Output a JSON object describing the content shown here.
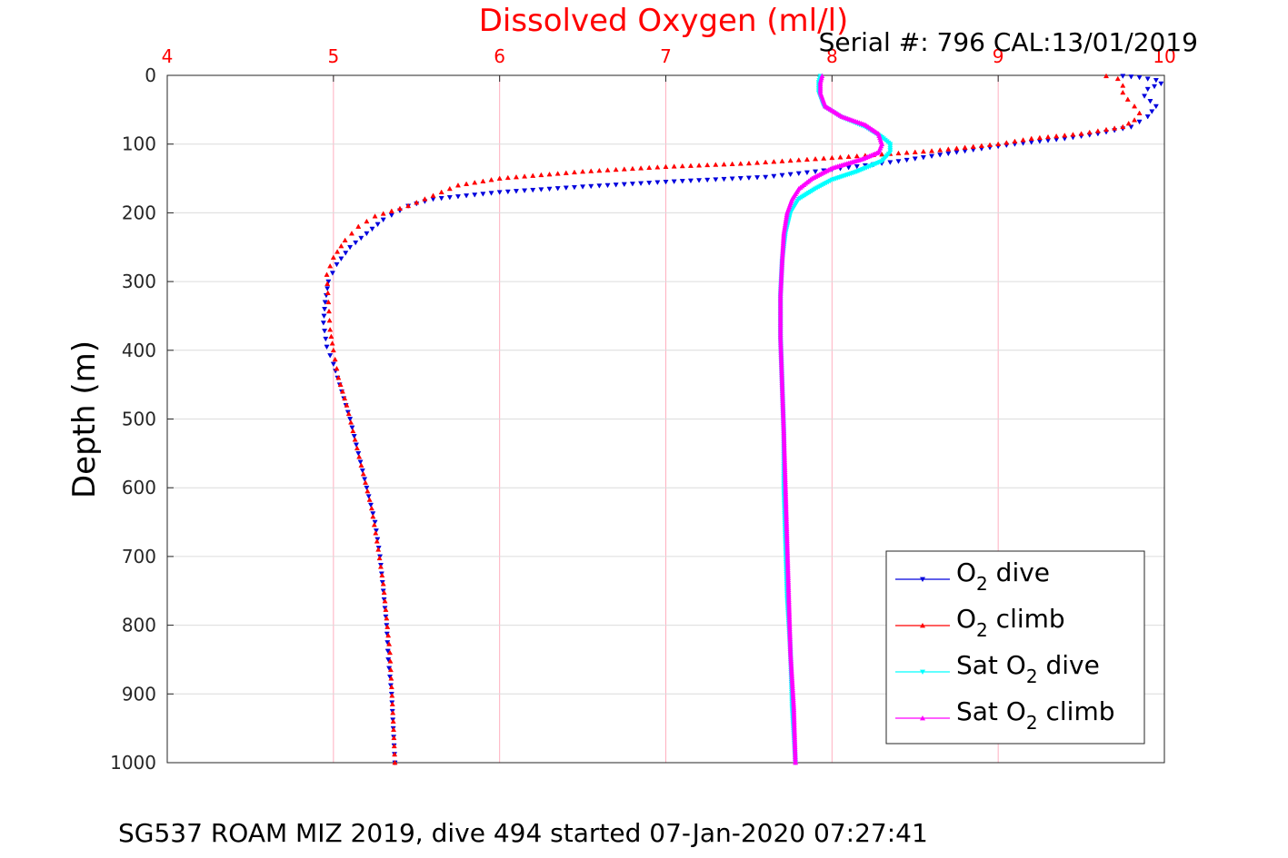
{
  "chart_data": {
    "type": "scatter",
    "title": "Dissolved Oxygen (ml/l)",
    "subtitle": "Serial #: 796  CAL:13/01/2019",
    "caption": "SG537 ROAM MIZ 2019, dive 494 started 07-Jan-2020 07:27:41",
    "xlabel": "",
    "ylabel": "Depth (m)",
    "xlim": [
      4,
      10
    ],
    "ylim": [
      0,
      1000
    ],
    "y_reversed": true,
    "x_axis_position": "top",
    "xticks": [
      "4",
      "5",
      "6",
      "7",
      "8",
      "9",
      "10"
    ],
    "yticks": [
      "0",
      "100",
      "200",
      "300",
      "400",
      "500",
      "600",
      "700",
      "800",
      "900",
      "1000"
    ],
    "grid": true,
    "legend_position": "lower-right",
    "colors": {
      "title": "#ff0000",
      "xtick": "#ff0000",
      "grid": "#ffb0c0",
      "o2_dive": "#0000dd",
      "o2_climb": "#ff0000",
      "sat_dive": "#00ffff",
      "sat_climb": "#ff00ff"
    },
    "legend": [
      {
        "prefix": "O",
        "sub": "2",
        "suffix": " dive",
        "series": "o2_dive"
      },
      {
        "prefix": "O",
        "sub": "2",
        "suffix": " climb",
        "series": "o2_climb"
      },
      {
        "prefix": "Sat O",
        "sub": "2",
        "suffix": " dive",
        "series": "sat_dive"
      },
      {
        "prefix": "Sat O",
        "sub": "2",
        "suffix": " climb",
        "series": "sat_climb"
      }
    ],
    "series": [
      {
        "key": "o2_dive",
        "marker": "triangle-down",
        "points": [
          [
            9.75,
            1
          ],
          [
            9.85,
            3
          ],
          [
            9.95,
            7
          ],
          [
            9.98,
            12
          ],
          [
            9.9,
            20
          ],
          [
            9.88,
            30
          ],
          [
            9.95,
            45
          ],
          [
            9.9,
            60
          ],
          [
            9.8,
            75
          ],
          [
            9.6,
            85
          ],
          [
            9.4,
            92
          ],
          [
            9.1,
            100
          ],
          [
            8.8,
            110
          ],
          [
            8.4,
            125
          ],
          [
            7.9,
            140
          ],
          [
            7.6,
            148
          ],
          [
            7.0,
            155
          ],
          [
            6.5,
            162
          ],
          [
            6.0,
            170
          ],
          [
            5.6,
            180
          ],
          [
            5.45,
            190
          ],
          [
            5.3,
            210
          ],
          [
            5.2,
            230
          ],
          [
            5.1,
            250
          ],
          [
            5.02,
            275
          ],
          [
            4.97,
            300
          ],
          [
            4.95,
            330
          ],
          [
            4.94,
            360
          ],
          [
            4.96,
            395
          ],
          [
            5.0,
            420
          ],
          [
            5.05,
            460
          ],
          [
            5.1,
            500
          ],
          [
            5.15,
            550
          ],
          [
            5.2,
            600
          ],
          [
            5.25,
            650
          ],
          [
            5.28,
            700
          ],
          [
            5.3,
            750
          ],
          [
            5.32,
            800
          ],
          [
            5.33,
            850
          ],
          [
            5.35,
            900
          ],
          [
            5.36,
            950
          ],
          [
            5.37,
            1000
          ]
        ]
      },
      {
        "key": "o2_climb",
        "marker": "triangle-up",
        "points": [
          [
            9.65,
            1
          ],
          [
            9.72,
            5
          ],
          [
            9.75,
            15
          ],
          [
            9.75,
            25
          ],
          [
            9.78,
            35
          ],
          [
            9.82,
            45
          ],
          [
            9.85,
            55
          ],
          [
            9.82,
            65
          ],
          [
            9.75,
            75
          ],
          [
            9.5,
            85
          ],
          [
            9.2,
            92
          ],
          [
            9.0,
            100
          ],
          [
            8.6,
            110
          ],
          [
            8.0,
            120
          ],
          [
            7.5,
            128
          ],
          [
            7.0,
            133
          ],
          [
            6.5,
            140
          ],
          [
            6.0,
            150
          ],
          [
            5.75,
            160
          ],
          [
            5.6,
            175
          ],
          [
            5.45,
            190
          ],
          [
            5.25,
            205
          ],
          [
            5.15,
            220
          ],
          [
            5.07,
            240
          ],
          [
            5.0,
            265
          ],
          [
            4.96,
            290
          ],
          [
            4.97,
            330
          ],
          [
            4.98,
            370
          ],
          [
            5.0,
            400
          ],
          [
            5.03,
            440
          ],
          [
            5.08,
            480
          ],
          [
            5.13,
            530
          ],
          [
            5.18,
            580
          ],
          [
            5.23,
            630
          ],
          [
            5.27,
            690
          ],
          [
            5.3,
            740
          ],
          [
            5.32,
            790
          ],
          [
            5.34,
            840
          ],
          [
            5.35,
            890
          ],
          [
            5.36,
            940
          ],
          [
            5.37,
            1000
          ]
        ]
      },
      {
        "key": "sat_dive",
        "marker": "triangle-down",
        "points": [
          [
            7.93,
            1
          ],
          [
            7.92,
            10
          ],
          [
            7.92,
            25
          ],
          [
            7.95,
            45
          ],
          [
            8.05,
            60
          ],
          [
            8.2,
            75
          ],
          [
            8.3,
            90
          ],
          [
            8.35,
            100
          ],
          [
            8.35,
            112
          ],
          [
            8.3,
            125
          ],
          [
            8.15,
            140
          ],
          [
            8.0,
            152
          ],
          [
            7.9,
            165
          ],
          [
            7.8,
            180
          ],
          [
            7.75,
            200
          ],
          [
            7.72,
            230
          ],
          [
            7.7,
            270
          ],
          [
            7.69,
            320
          ],
          [
            7.69,
            380
          ],
          [
            7.7,
            450
          ],
          [
            7.71,
            520
          ],
          [
            7.71,
            600
          ],
          [
            7.72,
            680
          ],
          [
            7.73,
            760
          ],
          [
            7.75,
            840
          ],
          [
            7.76,
            920
          ],
          [
            7.78,
            1000
          ]
        ]
      },
      {
        "key": "sat_climb",
        "marker": "triangle-up",
        "points": [
          [
            7.94,
            1
          ],
          [
            7.93,
            10
          ],
          [
            7.93,
            25
          ],
          [
            7.96,
            45
          ],
          [
            8.06,
            60
          ],
          [
            8.2,
            72
          ],
          [
            8.28,
            85
          ],
          [
            8.3,
            100
          ],
          [
            8.28,
            112
          ],
          [
            8.18,
            122
          ],
          [
            8.0,
            135
          ],
          [
            7.88,
            150
          ],
          [
            7.8,
            165
          ],
          [
            7.76,
            180
          ],
          [
            7.73,
            200
          ],
          [
            7.71,
            230
          ],
          [
            7.7,
            270
          ],
          [
            7.69,
            320
          ],
          [
            7.69,
            380
          ],
          [
            7.7,
            450
          ],
          [
            7.71,
            520
          ],
          [
            7.72,
            600
          ],
          [
            7.73,
            680
          ],
          [
            7.74,
            760
          ],
          [
            7.75,
            840
          ],
          [
            7.77,
            920
          ],
          [
            7.78,
            1000
          ]
        ]
      }
    ]
  }
}
